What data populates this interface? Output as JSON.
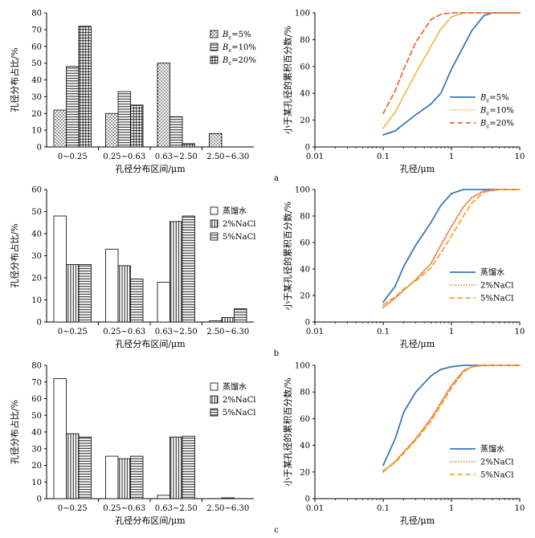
{
  "chart_data": [
    {
      "id": "a-bar",
      "type": "bar",
      "categories": [
        "0~0.25",
        "0.25~0.63",
        "0.63~2.50",
        "2.50~6.30"
      ],
      "series": [
        {
          "name": "5%",
          "values": [
            22,
            20,
            50,
            8
          ],
          "pattern": "dots"
        },
        {
          "name": "10%",
          "values": [
            48,
            33,
            18,
            0
          ],
          "pattern": "hlines"
        },
        {
          "name": "20%",
          "values": [
            72,
            25,
            2,
            0
          ],
          "pattern": "grid"
        }
      ],
      "xlabel": "孔径分布区间/μm",
      "ylabel": "孔径分布占比/%",
      "ylim": [
        0,
        80
      ],
      "yticks": [
        0,
        10,
        20,
        30,
        40,
        50,
        60,
        70,
        80
      ],
      "legend_prefix": "B",
      "legend_sub": "c",
      "legend_position": "top-right"
    },
    {
      "id": "a-line",
      "type": "line",
      "xscale": "log",
      "xlim": [
        0.01,
        10
      ],
      "xticks": [
        "0.01",
        "0.1",
        "1",
        "10"
      ],
      "ylim": [
        0,
        100
      ],
      "yticks": [
        0,
        20,
        40,
        60,
        80,
        100
      ],
      "xlabel": "孔径/μm",
      "ylabel": "小于某孔径的累积百分数/%",
      "legend_position": "bottom-right",
      "legend_prefix": "B",
      "legend_sub": "c",
      "panel_label": "a",
      "series": [
        {
          "name": "=5%",
          "color": "#3a78b6",
          "dash": "solid",
          "x": [
            0.1,
            0.15,
            0.2,
            0.3,
            0.5,
            0.7,
            1.0,
            1.5,
            2.0,
            3.0,
            4.0,
            5.0,
            10
          ],
          "y": [
            9,
            12,
            17,
            24,
            32,
            40,
            58,
            75,
            87,
            98,
            100,
            100,
            100
          ]
        },
        {
          "name": "=10%",
          "color": "#f5a623",
          "dash": "dot",
          "x": [
            0.1,
            0.15,
            0.2,
            0.3,
            0.5,
            0.7,
            1.0,
            1.5,
            2.0,
            3.0,
            5.0,
            10
          ],
          "y": [
            14,
            26,
            38,
            55,
            75,
            88,
            97,
            100,
            100,
            100,
            100,
            100
          ]
        },
        {
          "name": "=20%",
          "color": "#ee6a3a",
          "dash": "dash",
          "x": [
            0.1,
            0.15,
            0.2,
            0.3,
            0.5,
            0.7,
            1.0,
            1.5,
            2.0,
            3.0,
            5.0,
            10
          ],
          "y": [
            25,
            42,
            58,
            78,
            95,
            99,
            100,
            100,
            100,
            100,
            100,
            100
          ]
        }
      ]
    },
    {
      "id": "b-bar",
      "type": "bar",
      "categories": [
        "0~0.25",
        "0.25~0.63",
        "0.63~2.50",
        "2.50~6.30"
      ],
      "series": [
        {
          "name": "蒸馏水",
          "values": [
            48,
            33,
            18,
            0.5
          ],
          "pattern": "empty"
        },
        {
          "name": "2%NaCl",
          "values": [
            26,
            25.5,
            45.5,
            2
          ],
          "pattern": "vlines"
        },
        {
          "name": "5%NaCl",
          "values": [
            26,
            19.5,
            48,
            6
          ],
          "pattern": "hlines"
        }
      ],
      "xlabel": "孔径分布区间/μm",
      "ylabel": "孔径分布占比/%",
      "ylim": [
        0,
        60
      ],
      "yticks": [
        0,
        10,
        20,
        30,
        40,
        50,
        60
      ],
      "legend_position": "top-right"
    },
    {
      "id": "b-line",
      "type": "line",
      "xscale": "log",
      "xlim": [
        0.01,
        10
      ],
      "xticks": [
        "0.01",
        "0.1",
        "1",
        "10"
      ],
      "ylim": [
        0,
        100
      ],
      "yticks": [
        0,
        20,
        40,
        60,
        80,
        100
      ],
      "xlabel": "孔径/μm",
      "ylabel": "小于某孔径的累积百分数/%",
      "legend_position": "bottom-right",
      "panel_label": "b",
      "series": [
        {
          "name": "蒸馏水",
          "color": "#3a78b6",
          "dash": "solid",
          "x": [
            0.1,
            0.15,
            0.2,
            0.3,
            0.5,
            0.7,
            1.0,
            1.5,
            2.0,
            3.0,
            5.0,
            10
          ],
          "y": [
            15,
            27,
            42,
            58,
            75,
            88,
            97,
            100,
            100,
            100,
            100,
            100
          ]
        },
        {
          "name": "2%NaCl",
          "color": "#ee6a3a",
          "dash": "dot",
          "x": [
            0.1,
            0.15,
            0.2,
            0.3,
            0.5,
            0.7,
            1.0,
            1.5,
            2.0,
            3.0,
            5.0,
            10
          ],
          "y": [
            11,
            18,
            24,
            32,
            44,
            58,
            72,
            87,
            94,
            99,
            100,
            100
          ]
        },
        {
          "name": "5%NaCl",
          "color": "#f5a623",
          "dash": "dash",
          "x": [
            0.1,
            0.15,
            0.2,
            0.3,
            0.5,
            0.7,
            1.0,
            1.5,
            2.0,
            3.0,
            5.0,
            10
          ],
          "y": [
            13,
            19,
            25,
            31,
            41,
            52,
            65,
            80,
            90,
            98,
            100,
            100
          ]
        }
      ]
    },
    {
      "id": "c-bar",
      "type": "bar",
      "categories": [
        "0~0.25",
        "0.25~0.63",
        "0.63~2.50",
        "2.50~6.30"
      ],
      "series": [
        {
          "name": "蒸馏水",
          "values": [
            72,
            25.5,
            2,
            0
          ],
          "pattern": "empty"
        },
        {
          "name": "2%NaCl",
          "values": [
            39,
            24,
            37,
            0.5
          ],
          "pattern": "vlines"
        },
        {
          "name": "5%NaCl",
          "values": [
            37,
            25.5,
            37.5,
            0
          ],
          "pattern": "hlines"
        }
      ],
      "xlabel": "孔径分布区间/μm",
      "ylabel": "孔径分布占比/%",
      "ylim": [
        0,
        80
      ],
      "yticks": [
        0,
        10,
        20,
        30,
        40,
        50,
        60,
        70,
        80
      ],
      "legend_position": "top-right"
    },
    {
      "id": "c-line",
      "type": "line",
      "xscale": "log",
      "xlim": [
        0.01,
        10
      ],
      "xticks": [
        "0.01",
        "0.1",
        "1",
        "10"
      ],
      "ylim": [
        0,
        100
      ],
      "yticks": [
        0,
        20,
        40,
        60,
        80,
        100
      ],
      "xlabel": "孔径/μm",
      "ylabel": "小于某孔径的累积百分数/%",
      "legend_position": "bottom-right",
      "panel_label": "c",
      "series": [
        {
          "name": "蒸馏水",
          "color": "#3a78b6",
          "dash": "solid",
          "x": [
            0.1,
            0.15,
            0.2,
            0.3,
            0.5,
            0.7,
            1.0,
            1.5,
            2.0,
            3.0,
            5.0,
            10
          ],
          "y": [
            25,
            45,
            65,
            80,
            92,
            97,
            99,
            100,
            100,
            100,
            100,
            100
          ]
        },
        {
          "name": "2%NaCl",
          "color": "#ee6a3a",
          "dash": "dot",
          "x": [
            0.1,
            0.15,
            0.2,
            0.3,
            0.5,
            0.7,
            1.0,
            1.5,
            2.0,
            3.0,
            5.0,
            10
          ],
          "y": [
            20,
            28,
            35,
            45,
            60,
            72,
            85,
            96,
            99,
            100,
            100,
            100
          ]
        },
        {
          "name": "5%NaCl",
          "color": "#f5a623",
          "dash": "dash",
          "x": [
            0.1,
            0.15,
            0.2,
            0.3,
            0.5,
            0.7,
            1.0,
            1.5,
            2.0,
            3.0,
            5.0,
            10
          ],
          "y": [
            21,
            27,
            34,
            44,
            58,
            70,
            83,
            95,
            99,
            100,
            100,
            100
          ]
        }
      ]
    }
  ]
}
